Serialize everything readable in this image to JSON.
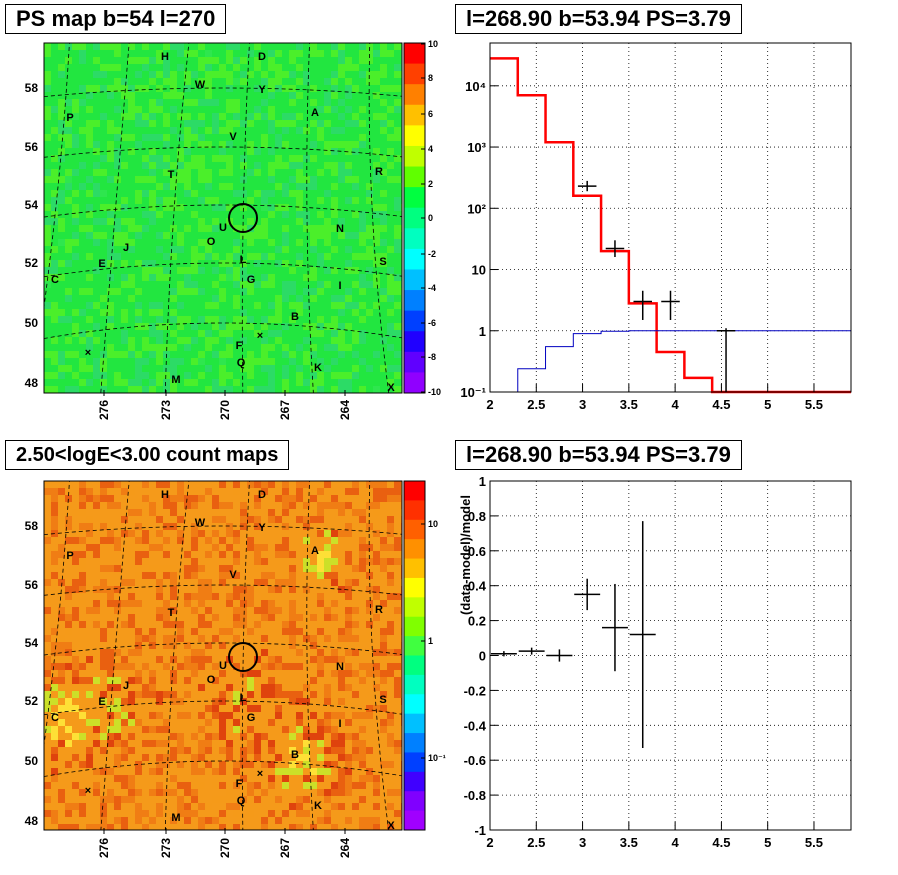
{
  "titles": {
    "ps_map": "PS map b=54 l=270",
    "spectrum": "l=268.90 b=53.94 PS=3.79",
    "count_map": "2.50<logE<3.00 count maps",
    "residual": "l=268.90 b=53.94 PS=3.79"
  },
  "map_axes": {
    "lat_ticks": [
      "58",
      "56",
      "54",
      "52",
      "50",
      "48"
    ],
    "lon_ticks": [
      "276",
      "273",
      "270",
      "267",
      "264"
    ]
  },
  "sources": [
    "H",
    "D",
    "W",
    "Y",
    "P",
    "A",
    "V",
    "R",
    "T",
    "N",
    "U",
    "O",
    "J",
    "E",
    "L",
    "S",
    "C",
    "G",
    "I",
    "B",
    "F",
    "Q",
    "K",
    "M",
    "X"
  ],
  "colorbar_ps": {
    "labels": [
      "10",
      "8",
      "6",
      "4",
      "2",
      "0",
      "-2",
      "-4",
      "-6",
      "-8",
      "-10"
    ],
    "colors": [
      "#ff0000",
      "#ff4000",
      "#ff8000",
      "#ffc000",
      "#ffff00",
      "#c0ff00",
      "#60ff00",
      "#00ff40",
      "#00ff80",
      "#00ffc0",
      "#00ffff",
      "#00c0ff",
      "#0080ff",
      "#0040ff",
      "#2000ff",
      "#6000ff",
      "#9000ff"
    ]
  },
  "colorbar_counts": {
    "labels": [
      "10",
      "1",
      "10^-1"
    ],
    "colors": [
      "#ff0000",
      "#ff3000",
      "#ff6000",
      "#ff9000",
      "#ffc000",
      "#ffff00",
      "#c0ff00",
      "#80ff00",
      "#40ff40",
      "#00ff80",
      "#00ffc0",
      "#00ffff",
      "#00c0ff",
      "#0080ff",
      "#0040ff",
      "#4000ff",
      "#8000ff",
      "#a000ff"
    ]
  },
  "chart_data": [
    {
      "type": "line",
      "title": "l=268.90 b=53.94 PS=3.79",
      "xlabel": "",
      "ylabel": "",
      "xlim": [
        2,
        5.9
      ],
      "ylim": [
        0.1,
        50000
      ],
      "yscale": "log",
      "grid": true,
      "x_ticks": [
        "2",
        "2.5",
        "3",
        "3.5",
        "4",
        "4.5",
        "5",
        "5.5"
      ],
      "y_ticks": [
        "10^-1",
        "1",
        "10",
        "10^2",
        "10^3",
        "10^4"
      ],
      "series": [
        {
          "role": "model-total",
          "color": "#ff0000",
          "bin_edges": [
            2.0,
            2.3,
            2.6,
            2.9,
            3.2,
            3.5,
            3.8,
            4.1,
            4.4,
            5.9
          ],
          "values": [
            28000,
            7000,
            1200,
            160,
            20,
            2.8,
            0.45,
            0.17,
            0.1
          ]
        },
        {
          "role": "point-source-model",
          "color": "#0000c0",
          "bin_edges": [
            2.0,
            2.3,
            2.6,
            2.9,
            3.2,
            3.5,
            3.8,
            4.1,
            4.4,
            5.9
          ],
          "values": [
            0.1,
            0.24,
            0.55,
            0.9,
            0.98,
            1.0,
            1.0,
            1.0,
            1.0
          ]
        },
        {
          "role": "data",
          "color": "#000000",
          "x": [
            3.05,
            3.35,
            3.65,
            3.95,
            4.55
          ],
          "y": [
            230,
            22,
            3,
            3,
            1
          ],
          "xerr": 0.1,
          "y_low": [
            190,
            16,
            1.5,
            1.5,
            0.1
          ],
          "y_high": [
            280,
            30,
            4.5,
            4.5,
            1.1
          ]
        }
      ]
    },
    {
      "type": "scatter",
      "title": "l=268.90 b=53.94 PS=3.79",
      "xlabel": "",
      "ylabel": "(data-model)/model",
      "xlim": [
        2,
        5.9
      ],
      "ylim": [
        -1,
        1
      ],
      "grid": true,
      "x_ticks": [
        "2",
        "2.5",
        "3",
        "3.5",
        "4",
        "4.5",
        "5",
        "5.5"
      ],
      "y_ticks": [
        "1",
        "0.8",
        "0.6",
        "0.4",
        "0.2",
        "0",
        "-0.2",
        "-0.4",
        "-0.6",
        "-0.8",
        "-1"
      ],
      "series": [
        {
          "role": "residual",
          "color": "#000000",
          "x": [
            2.15,
            2.45,
            2.75,
            3.05,
            3.35,
            3.65
          ],
          "y": [
            0.01,
            0.025,
            0.0,
            0.35,
            0.16,
            0.12
          ],
          "xerr": 0.14,
          "yerr": [
            0.015,
            0.02,
            0.035,
            0.09,
            0.25,
            0.65
          ]
        }
      ]
    }
  ]
}
